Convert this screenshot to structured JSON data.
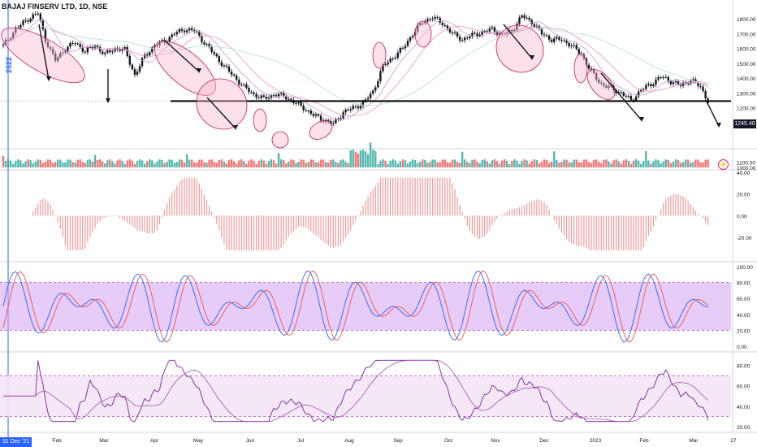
{
  "header": {
    "title": "BAJAJ FINSERV LTD, 1D, NSE"
  },
  "badges": {
    "last_price": "1245.40",
    "year": "2022",
    "cursor_date": "31 Dec '21",
    "lightning": "⚡"
  },
  "colors": {
    "up": "#26a69a",
    "down": "#ef5350",
    "accent": "#2962ff",
    "band": "#e1bee7",
    "support": "#000000",
    "highlight": "#f8bbd0"
  },
  "chart_data": {
    "type": "candlestick",
    "title": "BAJAJ FINSERV LTD, 1D, NSE",
    "price_unit": "INR",
    "x_ticks": [
      "Feb",
      "Mar",
      "Apr",
      "May",
      "Jun",
      "Jul",
      "Aug",
      "Sep",
      "Oct",
      "Nov",
      "Dec",
      "2023",
      "Feb",
      "Mar",
      "27"
    ],
    "price": {
      "ylim": [
        1050,
        1900
      ],
      "y_ticks": [
        1800,
        1700,
        1600,
        1500,
        1400,
        1300,
        1200,
        1100
      ],
      "y_tick_labels": [
        "1800.00",
        "1700.00",
        "1600.00",
        "1500.00",
        "1400.00",
        "1300.00",
        "1200.00",
        "1100.00"
      ],
      "support_level": 1245.4,
      "last_price": 1245.4,
      "close_path": [
        [
          0,
          1620
        ],
        [
          5,
          1730
        ],
        [
          10,
          1800
        ],
        [
          14,
          1840
        ],
        [
          17,
          1660
        ],
        [
          21,
          1520
        ],
        [
          25,
          1600
        ],
        [
          29,
          1640
        ],
        [
          33,
          1580
        ],
        [
          37,
          1620
        ],
        [
          41,
          1560
        ],
        [
          45,
          1600
        ],
        [
          49,
          1590
        ],
        [
          53,
          1420
        ],
        [
          57,
          1550
        ],
        [
          61,
          1620
        ],
        [
          65,
          1650
        ],
        [
          69,
          1700
        ],
        [
          73,
          1730
        ],
        [
          77,
          1720
        ],
        [
          81,
          1640
        ],
        [
          85,
          1560
        ],
        [
          89,
          1480
        ],
        [
          93,
          1410
        ],
        [
          97,
          1340
        ],
        [
          101,
          1290
        ],
        [
          105,
          1260
        ],
        [
          109,
          1290
        ],
        [
          113,
          1280
        ],
        [
          117,
          1240
        ],
        [
          121,
          1200
        ],
        [
          125,
          1150
        ],
        [
          129,
          1120
        ],
        [
          133,
          1090
        ],
        [
          137,
          1170
        ],
        [
          141,
          1200
        ],
        [
          145,
          1230
        ],
        [
          149,
          1310
        ],
        [
          153,
          1480
        ],
        [
          157,
          1540
        ],
        [
          161,
          1600
        ],
        [
          165,
          1700
        ],
        [
          169,
          1780
        ],
        [
          173,
          1810
        ],
        [
          177,
          1770
        ],
        [
          181,
          1700
        ],
        [
          185,
          1660
        ],
        [
          189,
          1690
        ],
        [
          193,
          1710
        ],
        [
          197,
          1730
        ],
        [
          201,
          1690
        ],
        [
          205,
          1720
        ],
        [
          209,
          1820
        ],
        [
          213,
          1780
        ],
        [
          217,
          1700
        ],
        [
          221,
          1660
        ],
        [
          225,
          1660
        ],
        [
          229,
          1620
        ],
        [
          233,
          1560
        ],
        [
          237,
          1440
        ],
        [
          241,
          1360
        ],
        [
          245,
          1330
        ],
        [
          249,
          1300
        ],
        [
          253,
          1250
        ],
        [
          257,
          1320
        ],
        [
          261,
          1360
        ],
        [
          265,
          1410
        ],
        [
          269,
          1380
        ],
        [
          273,
          1350
        ],
        [
          277,
          1390
        ],
        [
          281,
          1340
        ],
        [
          284,
          1245
        ]
      ],
      "x_domain": [
        0,
        290
      ]
    },
    "volume": {
      "ylim": [
        1000,
        1300
      ],
      "y_ticks": [
        1100,
        1000
      ],
      "y_tick_labels": [
        "1100.00",
        "1000.00"
      ]
    },
    "macd": {
      "ylim": [
        -35,
        40
      ],
      "y_ticks": [
        40,
        20,
        0,
        -20
      ],
      "y_tick_labels": [
        "40.00",
        "20.00",
        "0.00",
        "-20.00"
      ]
    },
    "stochastic": {
      "ylim": [
        0,
        100
      ],
      "band": [
        20,
        80
      ],
      "y_ticks": [
        100,
        80,
        60,
        40,
        20,
        0
      ],
      "y_tick_labels": [
        "100.00",
        "80.00",
        "60.00",
        "40.00",
        "20.00",
        "0.00"
      ]
    },
    "rsi": {
      "ylim": [
        20,
        90
      ],
      "band": [
        30,
        70
      ],
      "y_ticks": [
        80,
        60,
        40,
        20
      ],
      "y_tick_labels": [
        "80.00",
        "60.00",
        "40.00",
        "20.00"
      ]
    }
  }
}
